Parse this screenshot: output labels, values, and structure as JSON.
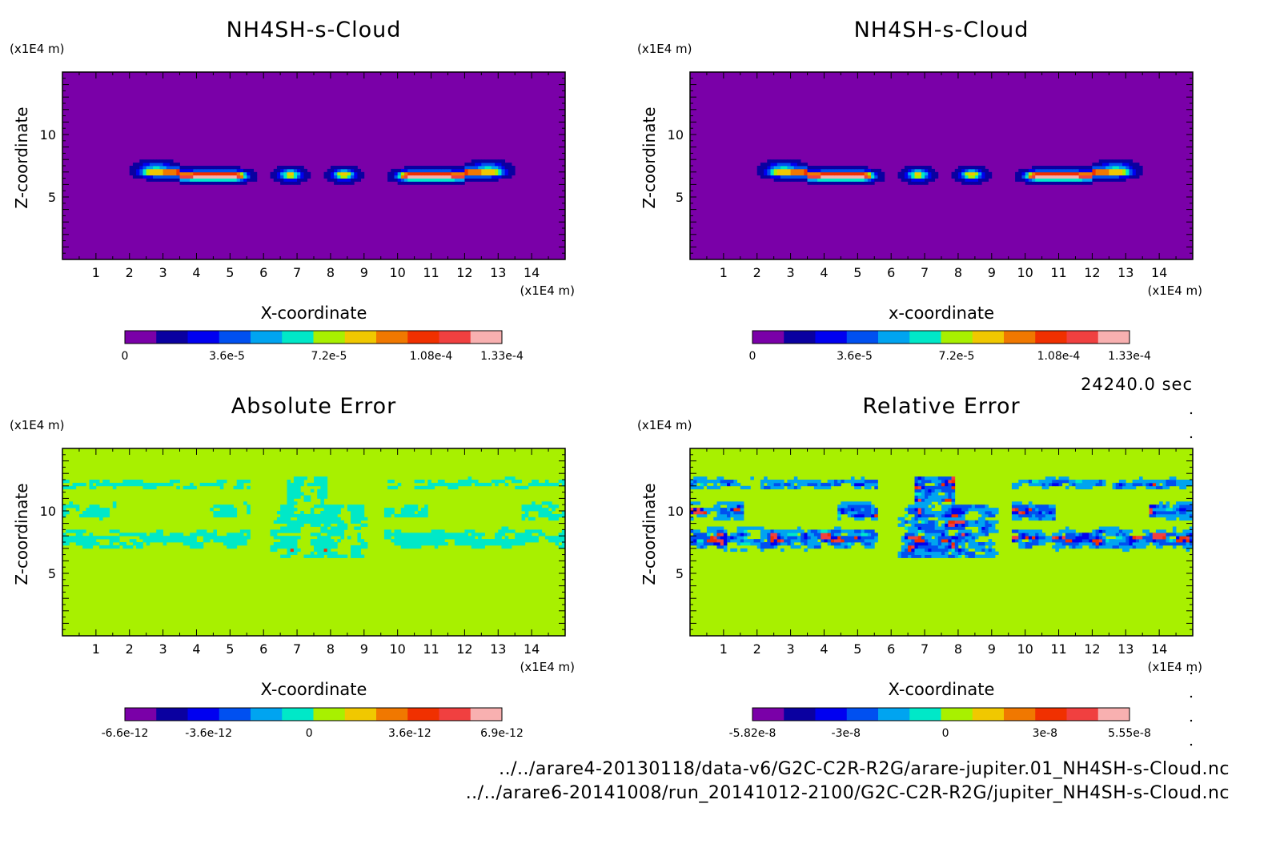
{
  "figure": {
    "time_label": "24240.0 sec",
    "files": [
      "../../arare4-20130118/data-v6/G2C-C2R-R2G/arare-jupiter.01_NH4SH-s-Cloud.nc",
      "../../arare6-20141008/run_20141012-2100/G2C-C2R-R2G/jupiter_NH4SH-s-Cloud.nc"
    ]
  },
  "chart_data": [
    {
      "type": "heatmap",
      "title": "NH4SH-s-Cloud",
      "xlabel": "X-coordinate",
      "ylabel": "Z-coordinate",
      "x_unit": "(x1E4 m)",
      "y_unit": "(x1E4 m)",
      "xlim": [
        0,
        15
      ],
      "ylim": [
        0,
        15
      ],
      "xticks": [
        1,
        2,
        3,
        4,
        5,
        6,
        7,
        8,
        9,
        10,
        11,
        12,
        13,
        14
      ],
      "yticks": [
        5,
        10
      ],
      "colorbar": {
        "tick_labels": [
          "0",
          "3.6e-5",
          "7.2e-5",
          "1.08e-4",
          "1.33e-4"
        ],
        "tick_values": [
          0,
          3.6e-05,
          7.2e-05,
          0.000108,
          0.000133
        ],
        "range": [
          0,
          0.000133
        ]
      },
      "field": "cloud",
      "background_level": 0,
      "features": [
        {
          "x": 3.9,
          "z": 6.8,
          "amplitude": 0.000133,
          "shape": "band"
        },
        {
          "x": 11.6,
          "z": 6.8,
          "amplitude": 0.000133,
          "shape": "band"
        },
        {
          "x": 6.8,
          "z": 6.8,
          "amplitude": 8.5e-05,
          "shape": "blob"
        },
        {
          "x": 8.4,
          "z": 6.8,
          "amplitude": 9e-05,
          "shape": "blob"
        }
      ]
    },
    {
      "type": "heatmap",
      "title": "NH4SH-s-Cloud",
      "xlabel": "x-coordinate",
      "ylabel": "Z-coordinate",
      "x_unit": "(x1E4 m)",
      "y_unit": "(x1E4 m)",
      "xlim": [
        0,
        15
      ],
      "ylim": [
        0,
        15
      ],
      "xticks": [
        1,
        2,
        3,
        4,
        5,
        6,
        7,
        8,
        9,
        10,
        11,
        12,
        13,
        14
      ],
      "yticks": [
        5,
        10
      ],
      "colorbar": {
        "tick_labels": [
          "0",
          "3.6e-5",
          "7.2e-5",
          "1.08e-4",
          "1.33e-4"
        ],
        "tick_values": [
          0,
          3.6e-05,
          7.2e-05,
          0.000108,
          0.000133
        ],
        "range": [
          0,
          0.000133
        ]
      },
      "field": "cloud",
      "background_level": 0,
      "features": [
        {
          "x": 3.9,
          "z": 6.8,
          "amplitude": 0.000133,
          "shape": "band"
        },
        {
          "x": 11.6,
          "z": 6.8,
          "amplitude": 0.000133,
          "shape": "band"
        },
        {
          "x": 6.8,
          "z": 6.8,
          "amplitude": 8.5e-05,
          "shape": "blob"
        },
        {
          "x": 8.4,
          "z": 6.8,
          "amplitude": 9e-05,
          "shape": "blob"
        }
      ]
    },
    {
      "type": "heatmap",
      "title": "Absolute Error",
      "xlabel": "X-coordinate",
      "ylabel": "Z-coordinate",
      "x_unit": "(x1E4 m)",
      "y_unit": "(x1E4 m)",
      "xlim": [
        0,
        15
      ],
      "ylim": [
        0,
        15
      ],
      "xticks": [
        1,
        2,
        3,
        4,
        5,
        6,
        7,
        8,
        9,
        10,
        11,
        12,
        13,
        14
      ],
      "yticks": [
        5,
        10
      ],
      "colorbar": {
        "tick_labels": [
          "-6.6e-12",
          "-3.6e-12",
          "0",
          "3.6e-12",
          "6.9e-12"
        ],
        "tick_values": [
          -6.6e-12,
          -3.6e-12,
          0,
          3.6e-12,
          6.9e-12
        ],
        "range": [
          -6.6e-12,
          6.9e-12
        ]
      },
      "field": "abs_error",
      "background_level": 0,
      "noise_regions": "upper arcs near z=8-12 over x=0.5-5, x=10-15, and central columns near x=6.5-9"
    },
    {
      "type": "heatmap",
      "title": "Relative Error",
      "xlabel": "X-coordinate",
      "ylabel": "Z-coordinate",
      "x_unit": "(x1E4 m)",
      "y_unit": "(x1E4 m)",
      "xlim": [
        0,
        15
      ],
      "ylim": [
        0,
        15
      ],
      "xticks": [
        1,
        2,
        3,
        4,
        5,
        6,
        7,
        8,
        9,
        10,
        11,
        12,
        13,
        14
      ],
      "yticks": [
        5,
        10
      ],
      "colorbar": {
        "tick_labels": [
          "-5.82e-8",
          "-3e-8",
          "0",
          "3e-8",
          "5.55e-8"
        ],
        "tick_values": [
          -5.82e-08,
          -3e-08,
          0,
          3e-08,
          5.55e-08
        ],
        "range": [
          -5.82e-08,
          5.55e-08
        ]
      },
      "field": "rel_error",
      "background_level": 0,
      "noise_regions": "same regions as absolute error, with larger amplitude"
    }
  ],
  "colormap": [
    "#7a00a8",
    "#0a00a0",
    "#0000f0",
    "#0050f0",
    "#00a4f0",
    "#00e8c8",
    "#a8f000",
    "#f0c800",
    "#f07800",
    "#f03000",
    "#f04040",
    "#f8b0b0"
  ]
}
